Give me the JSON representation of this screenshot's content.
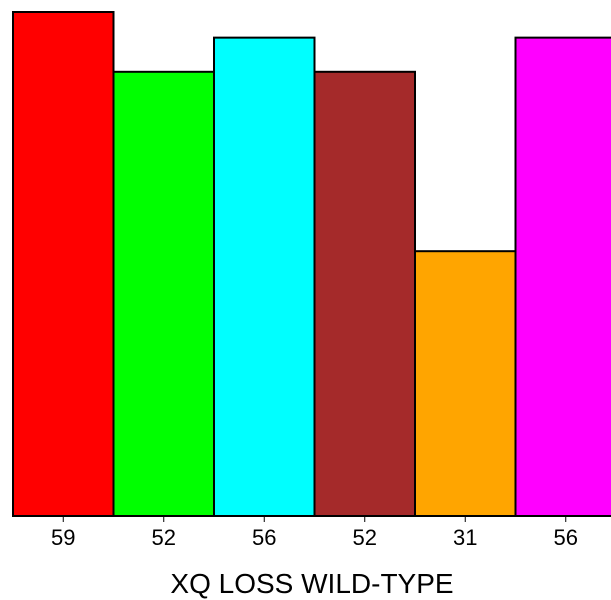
{
  "chart_data": {
    "type": "bar",
    "categories": [
      "59",
      "52",
      "56",
      "52",
      "31",
      "56"
    ],
    "values": [
      59,
      52,
      56,
      52,
      31,
      56
    ],
    "colors": [
      "#ff0000",
      "#00ff00",
      "#00ffff",
      "#a52a2a",
      "#ffa500",
      "#ff00ff"
    ],
    "xlabel": "XQ LOSS WILD-TYPE",
    "ylabel": "",
    "ylim": [
      0,
      59
    ]
  }
}
